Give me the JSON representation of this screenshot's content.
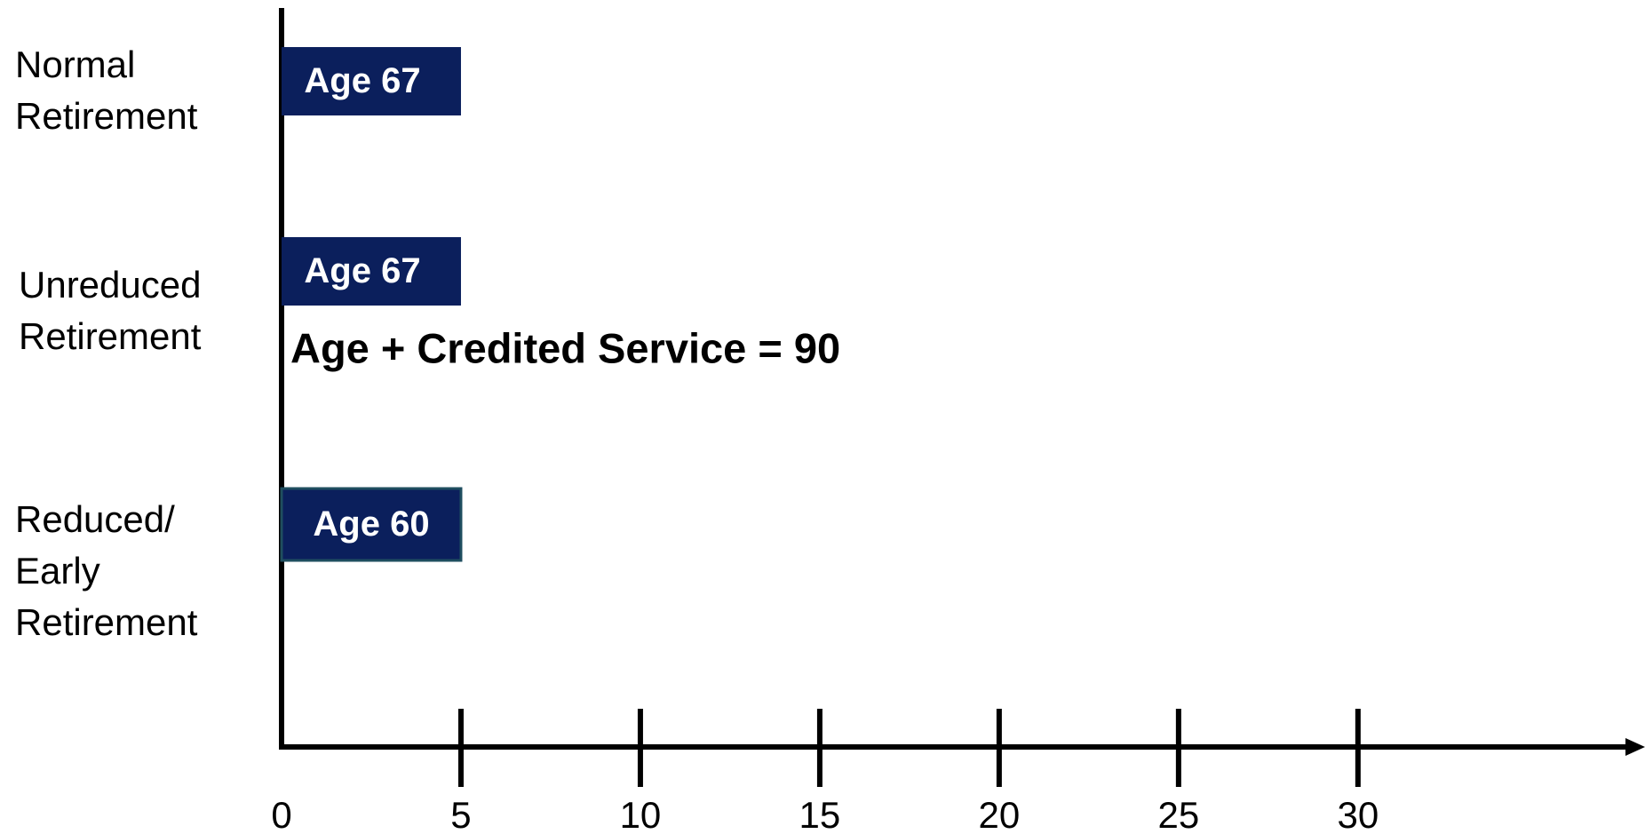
{
  "chart_data": {
    "type": "bar",
    "orientation": "horizontal",
    "categories": [
      "Normal\nRetirement",
      "Unreduced\nRetirement",
      "Reduced/\nEarly\nRetirement"
    ],
    "values": [
      5,
      5,
      5
    ],
    "bar_labels": [
      "Age 67",
      "Age 67",
      "Age 60"
    ],
    "color": "#0b1f5c",
    "annotation": "Age + Credited Service = 90",
    "xlim": [
      0,
      38
    ],
    "xticks": [
      0,
      5,
      10,
      15,
      20,
      25,
      30
    ]
  }
}
